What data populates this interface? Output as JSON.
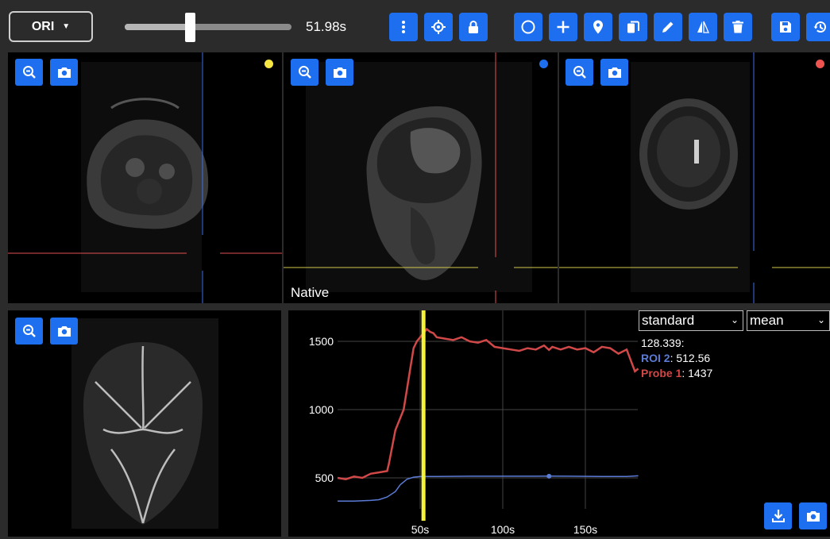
{
  "toolbar": {
    "orientation": "ORI",
    "time_label": "51.98s",
    "slider_progress": 0.39,
    "buttons": [
      {
        "name": "more-options-button",
        "icon": "more-vertical-icon"
      },
      {
        "name": "crosshair-button",
        "icon": "crosshair-icon"
      },
      {
        "name": "lock-button",
        "icon": "lock-icon"
      },
      {
        "name": "circle-roi-button",
        "icon": "circle-icon"
      },
      {
        "name": "add-probe-button",
        "icon": "plus-icon"
      },
      {
        "name": "place-marker-button",
        "icon": "map-pin-icon"
      },
      {
        "name": "copy-button",
        "icon": "copy-icon"
      },
      {
        "name": "draw-button",
        "icon": "pencil-icon"
      },
      {
        "name": "flip-button",
        "icon": "flip-icon"
      },
      {
        "name": "delete-button",
        "icon": "trash-icon"
      },
      {
        "name": "save-button",
        "icon": "save-icon"
      },
      {
        "name": "history-button",
        "icon": "history-icon"
      }
    ]
  },
  "views": {
    "axial": {
      "dot_color": "#f5e642"
    },
    "sagittal": {
      "dot_color": "#1e6ff0",
      "label": "Native"
    },
    "coronal": {
      "dot_color": "#ef5350"
    }
  },
  "plot": {
    "mode_select": "standard",
    "stat_select": "mean",
    "cursor_time": "128.339:",
    "roi_label": "ROI 2",
    "roi_value": ": 512.56",
    "probe_label": "Probe 1",
    "probe_value": ": 1437",
    "colors": {
      "roi": "#5b7bd6",
      "probe": "#d04848",
      "cursor": "#f5f23a"
    }
  },
  "chart_data": {
    "type": "line",
    "x_ticks": [
      "50s",
      "100s",
      "150s"
    ],
    "y_ticks": [
      "500",
      "1000",
      "1500"
    ],
    "xlim": [
      0,
      182
    ],
    "ylim": [
      300,
      1720
    ],
    "cursor_x": 52,
    "series": [
      {
        "name": "Probe 1",
        "color": "#d04848",
        "x": [
          0,
          5,
          10,
          15,
          20,
          25,
          30,
          31,
          35,
          40,
          42,
          44,
          46,
          48,
          50,
          52,
          54,
          56,
          58,
          60,
          65,
          70,
          75,
          80,
          85,
          90,
          95,
          100,
          105,
          110,
          115,
          120,
          125,
          128,
          130,
          135,
          140,
          145,
          150,
          155,
          160,
          165,
          170,
          175,
          180,
          182
        ],
        "y": [
          500,
          490,
          510,
          500,
          530,
          540,
          550,
          600,
          850,
          1000,
          1150,
          1300,
          1450,
          1500,
          1530,
          1560,
          1590,
          1570,
          1560,
          1530,
          1520,
          1510,
          1530,
          1500,
          1490,
          1510,
          1460,
          1450,
          1440,
          1430,
          1450,
          1440,
          1470,
          1437,
          1460,
          1440,
          1460,
          1440,
          1450,
          1420,
          1460,
          1450,
          1410,
          1440,
          1280,
          1300
        ]
      },
      {
        "name": "ROI 2",
        "color": "#5b7bd6",
        "x": [
          0,
          10,
          20,
          25,
          30,
          35,
          38,
          42,
          46,
          50,
          60,
          80,
          100,
          120,
          128,
          140,
          160,
          175,
          182
        ],
        "y": [
          330,
          330,
          335,
          340,
          360,
          400,
          450,
          490,
          505,
          510,
          510,
          512,
          512,
          512,
          512.56,
          512,
          510,
          510,
          515
        ]
      }
    ]
  }
}
